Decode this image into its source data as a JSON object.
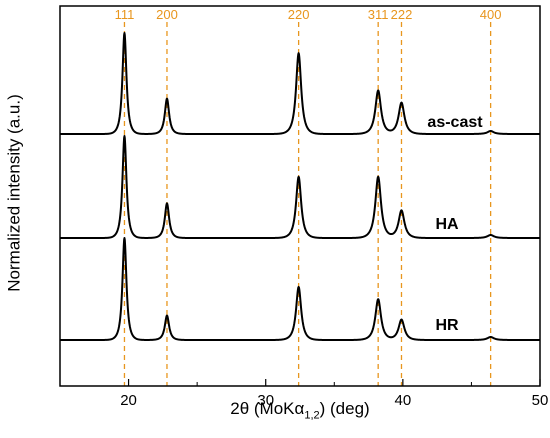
{
  "chart_data": {
    "type": "line",
    "xlabel": {
      "prefix": "2θ (MoKα",
      "subscript": "1,2",
      "suffix": ") (deg)"
    },
    "ylabel": "Normalized intensity (a.u.)",
    "xlim": [
      15,
      50
    ],
    "x_ticks": [
      "20",
      "30",
      "40",
      "50"
    ],
    "reflections": [
      {
        "label": "111",
        "x": 19.7
      },
      {
        "label": "200",
        "x": 22.8
      },
      {
        "label": "220",
        "x": 32.4
      },
      {
        "label": "311",
        "x": 38.2
      },
      {
        "label": "222",
        "x": 39.9
      },
      {
        "label": "400",
        "x": 46.4
      }
    ],
    "series": [
      {
        "name": "as-cast",
        "peaks": [
          {
            "x": 19.7,
            "height": 1.0
          },
          {
            "x": 22.8,
            "height": 0.35
          },
          {
            "x": 32.4,
            "height": 0.8
          },
          {
            "x": 38.2,
            "height": 0.43
          },
          {
            "x": 39.9,
            "height": 0.31
          },
          {
            "x": 46.4,
            "height": 0.03
          }
        ]
      },
      {
        "name": "HA",
        "peaks": [
          {
            "x": 19.7,
            "height": 1.0
          },
          {
            "x": 22.8,
            "height": 0.34
          },
          {
            "x": 32.4,
            "height": 0.6
          },
          {
            "x": 38.2,
            "height": 0.6
          },
          {
            "x": 39.9,
            "height": 0.27
          },
          {
            "x": 46.4,
            "height": 0.03
          }
        ]
      },
      {
        "name": "HR",
        "peaks": [
          {
            "x": 19.7,
            "height": 1.0
          },
          {
            "x": 22.8,
            "height": 0.24
          },
          {
            "x": 32.4,
            "height": 0.52
          },
          {
            "x": 38.2,
            "height": 0.4
          },
          {
            "x": 39.9,
            "height": 0.2
          },
          {
            "x": 46.4,
            "height": 0.03
          }
        ]
      }
    ],
    "colors": {
      "reference_lines": "#e8961e",
      "curves": "#000000",
      "axes": "#000000"
    }
  }
}
